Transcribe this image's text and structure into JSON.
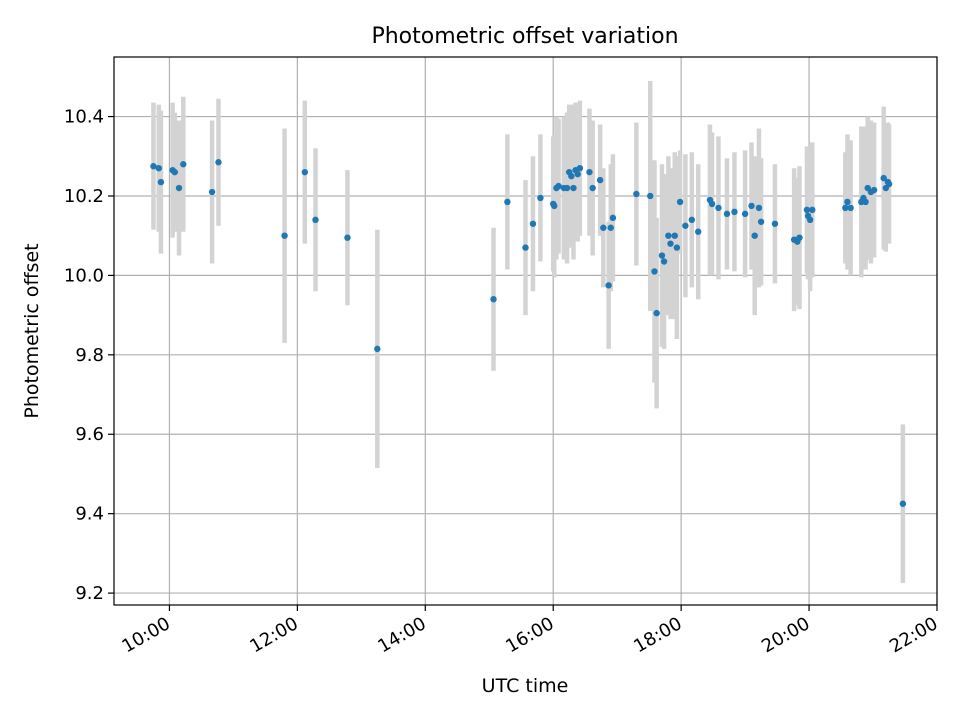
{
  "chart_data": {
    "type": "scatter",
    "title": "Photometric offset variation",
    "xlabel": "UTC time",
    "ylabel": "Photometric offset",
    "xlim": [
      "09:08",
      "22:00"
    ],
    "ylim": [
      9.17,
      10.55
    ],
    "xticks": [
      "10:00",
      "12:00",
      "14:00",
      "16:00",
      "18:00",
      "20:00",
      "22:00"
    ],
    "yticks": [
      "9.2",
      "9.4",
      "9.6",
      "9.8",
      "10.0",
      "10.2",
      "10.4"
    ],
    "grid": true,
    "colors": {
      "point": "#1f77b4",
      "errorbar": "#d3d3d3",
      "grid": "#b0b0b0"
    },
    "series": [
      {
        "points": [
          [
            "09:45",
            10.275,
            0.16
          ],
          [
            "09:50",
            10.27,
            0.16
          ],
          [
            "09:52",
            10.235,
            0.18
          ],
          [
            "10:03",
            10.265,
            0.17
          ],
          [
            "10:05",
            10.26,
            0.15
          ],
          [
            "10:09",
            10.22,
            0.17
          ],
          [
            "10:13",
            10.28,
            0.17
          ],
          [
            "10:40",
            10.21,
            0.18
          ],
          [
            "10:46",
            10.285,
            0.16
          ],
          [
            "11:48",
            10.1,
            0.27
          ],
          [
            "12:07",
            10.26,
            0.18
          ],
          [
            "12:17",
            10.14,
            0.18
          ],
          [
            "12:47",
            10.095,
            0.17
          ],
          [
            "13:15",
            9.815,
            0.3
          ],
          [
            "15:04",
            9.94,
            0.18
          ],
          [
            "15:17",
            10.185,
            0.17
          ],
          [
            "15:34",
            10.07,
            0.17
          ],
          [
            "15:41",
            10.13,
            0.17
          ],
          [
            "15:48",
            10.195,
            0.16
          ],
          [
            "16:00",
            10.18,
            0.17
          ],
          [
            "16:01",
            10.175,
            0.18
          ],
          [
            "16:03",
            10.22,
            0.18
          ],
          [
            "16:05",
            10.225,
            0.17
          ],
          [
            "16:10",
            10.22,
            0.18
          ],
          [
            "16:13",
            10.22,
            0.19
          ],
          [
            "16:15",
            10.26,
            0.17
          ],
          [
            "16:17",
            10.25,
            0.18
          ],
          [
            "16:19",
            10.22,
            0.18
          ],
          [
            "16:21",
            10.265,
            0.17
          ],
          [
            "16:23",
            10.255,
            0.17
          ],
          [
            "16:25",
            10.27,
            0.17
          ],
          [
            "16:34",
            10.26,
            0.16
          ],
          [
            "16:37",
            10.22,
            0.17
          ],
          [
            "16:44",
            10.24,
            0.14
          ],
          [
            "16:47",
            10.12,
            0.15
          ],
          [
            "16:52",
            9.975,
            0.16
          ],
          [
            "16:54",
            10.12,
            0.16
          ],
          [
            "16:56",
            10.145,
            0.16
          ],
          [
            "17:18",
            10.205,
            0.18
          ],
          [
            "17:31",
            10.2,
            0.29
          ],
          [
            "17:35",
            10.01,
            0.28
          ],
          [
            "17:37",
            9.905,
            0.24
          ],
          [
            "17:42",
            10.05,
            0.23
          ],
          [
            "17:44",
            10.035,
            0.22
          ],
          [
            "17:48",
            10.1,
            0.2
          ],
          [
            "17:50",
            10.08,
            0.19
          ],
          [
            "17:54",
            10.1,
            0.21
          ],
          [
            "17:56",
            10.07,
            0.23
          ],
          [
            "17:59",
            10.185,
            0.13
          ],
          [
            "18:04",
            10.125,
            0.18
          ],
          [
            "18:10",
            10.14,
            0.17
          ],
          [
            "18:16",
            10.11,
            0.17
          ],
          [
            "18:27",
            10.19,
            0.19
          ],
          [
            "18:29",
            10.18,
            0.18
          ],
          [
            "18:35",
            10.17,
            0.18
          ],
          [
            "18:43",
            10.155,
            0.14
          ],
          [
            "18:50",
            10.16,
            0.15
          ],
          [
            "19:00",
            10.155,
            0.16
          ],
          [
            "19:06",
            10.175,
            0.16
          ],
          [
            "19:09",
            10.1,
            0.2
          ],
          [
            "19:13",
            10.17,
            0.2
          ],
          [
            "19:15",
            10.135,
            0.16
          ],
          [
            "19:28",
            10.13,
            0.15
          ],
          [
            "19:46",
            10.09,
            0.18
          ],
          [
            "19:49",
            10.085,
            0.16
          ],
          [
            "19:51",
            10.095,
            0.18
          ],
          [
            "19:58",
            10.165,
            0.16
          ],
          [
            "19:59",
            10.15,
            0.16
          ],
          [
            "20:01",
            10.14,
            0.18
          ],
          [
            "20:03",
            10.165,
            0.17
          ],
          [
            "20:34",
            10.17,
            0.14
          ],
          [
            "20:36",
            10.185,
            0.17
          ],
          [
            "20:39",
            10.17,
            0.17
          ],
          [
            "20:49",
            10.185,
            0.19
          ],
          [
            "20:51",
            10.195,
            0.18
          ],
          [
            "20:53",
            10.185,
            0.17
          ],
          [
            "20:55",
            10.22,
            0.18
          ],
          [
            "20:58",
            10.21,
            0.18
          ],
          [
            "21:01",
            10.215,
            0.17
          ],
          [
            "21:10",
            10.245,
            0.18
          ],
          [
            "21:12",
            10.22,
            0.16
          ],
          [
            "21:14",
            10.235,
            0.15
          ],
          [
            "21:15",
            10.23,
            0.15
          ],
          [
            "21:28",
            9.425,
            0.2
          ]
        ]
      }
    ]
  }
}
